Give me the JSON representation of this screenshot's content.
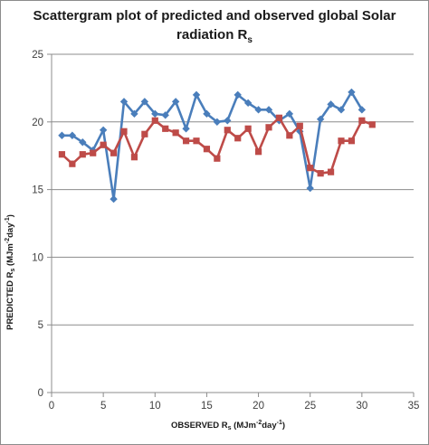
{
  "chart_data": {
    "type": "line",
    "title_main": "Scattergram plot of predicted and observed global Solar",
    "title_tail": "radiation R",
    "title_sub": "s",
    "xlabel": {
      "pre": "OBSERVED R",
      "sub": "s",
      "mid1": " (MJm",
      "sup1": "-2",
      "mid2": "day",
      "sup2": "-1",
      "end": ")"
    },
    "ylabel": {
      "pre": "PREDICTED R",
      "sub": "s",
      "mid1": " (MJm",
      "sup1": "-2",
      "mid2": "day",
      "sup2": "-1",
      "end": ")"
    },
    "xlim": [
      0,
      35
    ],
    "ylim": [
      0,
      25
    ],
    "x_ticks": [
      0,
      5,
      10,
      15,
      20,
      25,
      30,
      35
    ],
    "y_ticks": [
      0,
      5,
      10,
      15,
      20,
      25
    ],
    "grid": "horizontal",
    "legend": "none",
    "series": [
      {
        "color": "#4a7ebb",
        "marker": "diamond",
        "x": [
          1,
          2,
          3,
          4,
          5,
          6,
          7,
          8,
          9,
          10,
          11,
          12,
          13,
          14,
          15,
          16,
          17,
          18,
          19,
          20,
          21,
          22,
          23,
          24,
          25,
          26,
          27,
          28,
          29,
          30
        ],
        "y": [
          19.0,
          19.0,
          18.5,
          17.9,
          19.4,
          14.3,
          21.5,
          20.6,
          21.5,
          20.6,
          20.5,
          21.5,
          19.5,
          22.0,
          20.6,
          20.0,
          20.1,
          22.0,
          21.4,
          20.9,
          20.9,
          20.1,
          20.6,
          19.3,
          15.1,
          20.2,
          21.3,
          20.9,
          22.2,
          20.9
        ]
      },
      {
        "color": "#be4b48",
        "marker": "square",
        "x": [
          1,
          2,
          3,
          4,
          5,
          6,
          7,
          8,
          9,
          10,
          11,
          12,
          13,
          14,
          15,
          16,
          17,
          18,
          19,
          20,
          21,
          22,
          23,
          24,
          25,
          26,
          27,
          28,
          29,
          30,
          31
        ],
        "y": [
          17.6,
          16.9,
          17.6,
          17.7,
          18.3,
          17.7,
          19.3,
          17.4,
          19.1,
          20.1,
          19.5,
          19.2,
          18.6,
          18.6,
          18.0,
          17.3,
          19.4,
          18.8,
          19.5,
          17.8,
          19.6,
          20.3,
          19.0,
          19.7,
          16.6,
          16.2,
          16.3,
          18.6,
          18.6,
          20.1,
          19.8
        ]
      }
    ]
  }
}
